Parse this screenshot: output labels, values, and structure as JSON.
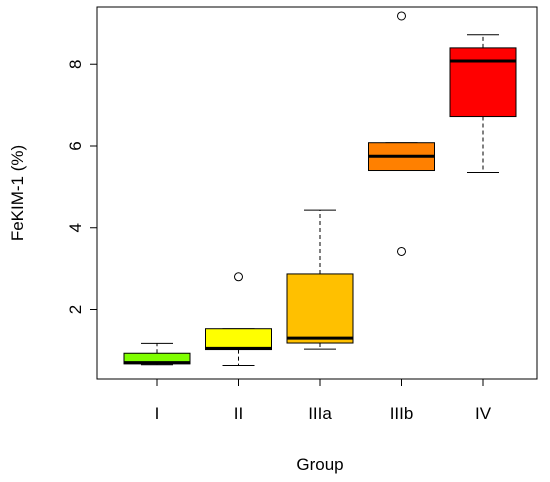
{
  "chart_data": {
    "type": "box",
    "xlabel": "Group",
    "ylabel": "FeKIM-1 (%)",
    "ylim": [
      0.3,
      9.4
    ],
    "yticks": [
      2,
      4,
      6,
      8
    ],
    "grid": false,
    "box_frame": true,
    "categories": [
      "I",
      "II",
      "IIIa",
      "IIIb",
      "IV"
    ],
    "boxes": [
      {
        "label": "I",
        "color": "#7FFF00",
        "whisker_low": 0.65,
        "q1": 0.67,
        "median": 0.7,
        "q3": 0.93,
        "whisker_high": 1.17,
        "outliers": []
      },
      {
        "label": "II",
        "color": "#FFFF00",
        "whisker_low": 0.63,
        "q1": 1.02,
        "median": 1.05,
        "q3": 1.53,
        "whisker_high": 1.53,
        "outliers": [
          2.8
        ]
      },
      {
        "label": "IIIa",
        "color": "#FFC000",
        "whisker_low": 1.03,
        "q1": 1.18,
        "median": 1.3,
        "q3": 2.87,
        "whisker_high": 4.43,
        "outliers": []
      },
      {
        "label": "IIIb",
        "color": "#FF8000",
        "whisker_low": 5.4,
        "q1": 5.4,
        "median": 5.75,
        "q3": 6.08,
        "whisker_high": 6.08,
        "outliers": [
          9.18,
          3.42
        ]
      },
      {
        "label": "IV",
        "color": "#FF0000",
        "whisker_low": 5.35,
        "q1": 6.72,
        "median": 8.08,
        "q3": 8.4,
        "whisker_high": 8.72,
        "outliers": []
      }
    ]
  }
}
